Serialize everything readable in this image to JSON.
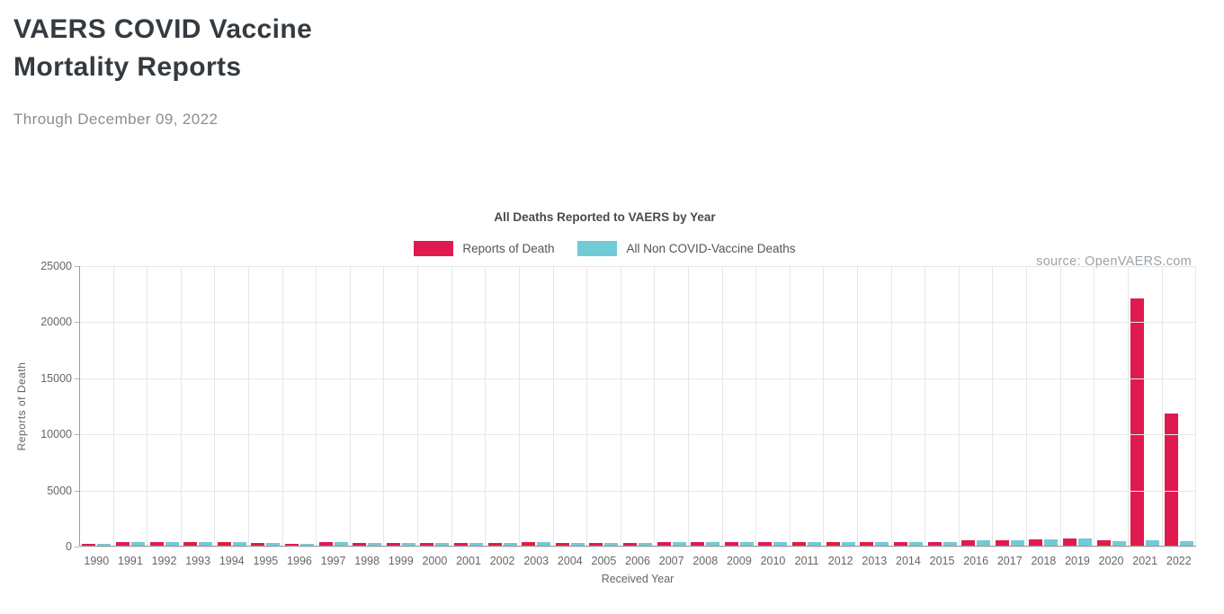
{
  "page": {
    "title": "VAERS COVID Vaccine\nMortality Reports",
    "subtitle": "Through December 09, 2022",
    "source": "source: OpenVAERS.com"
  },
  "chart_data": {
    "type": "bar",
    "title": "All Deaths Reported to VAERS by Year",
    "xlabel": "Received Year",
    "ylabel": "Reports of Death",
    "ylim": [
      0,
      25000
    ],
    "yticks": [
      0,
      5000,
      10000,
      15000,
      20000,
      25000
    ],
    "grid": true,
    "legend_position": "top-center",
    "categories": [
      "1990",
      "1991",
      "1992",
      "1993",
      "1994",
      "1995",
      "1996",
      "1997",
      "1998",
      "1999",
      "2000",
      "2001",
      "2002",
      "2003",
      "2004",
      "2005",
      "2006",
      "2007",
      "2008",
      "2009",
      "2010",
      "2011",
      "2012",
      "2013",
      "2014",
      "2015",
      "2016",
      "2017",
      "2018",
      "2019",
      "2020",
      "2021",
      "2022"
    ],
    "series": [
      {
        "name": "Reports of Death",
        "color": "#e01a4f",
        "values": [
          150,
          300,
          350,
          350,
          350,
          250,
          200,
          300,
          250,
          250,
          250,
          250,
          250,
          300,
          250,
          250,
          250,
          300,
          350,
          350,
          300,
          350,
          300,
          350,
          350,
          350,
          450,
          450,
          550,
          650,
          450,
          22000,
          11800
        ]
      },
      {
        "name": "All Non COVID-Vaccine Deaths",
        "color": "#70cbd6",
        "values": [
          150,
          300,
          350,
          350,
          350,
          250,
          200,
          300,
          250,
          250,
          250,
          250,
          250,
          300,
          250,
          250,
          250,
          300,
          350,
          350,
          300,
          350,
          300,
          350,
          350,
          350,
          450,
          450,
          550,
          650,
          400,
          500,
          400
        ]
      }
    ]
  }
}
